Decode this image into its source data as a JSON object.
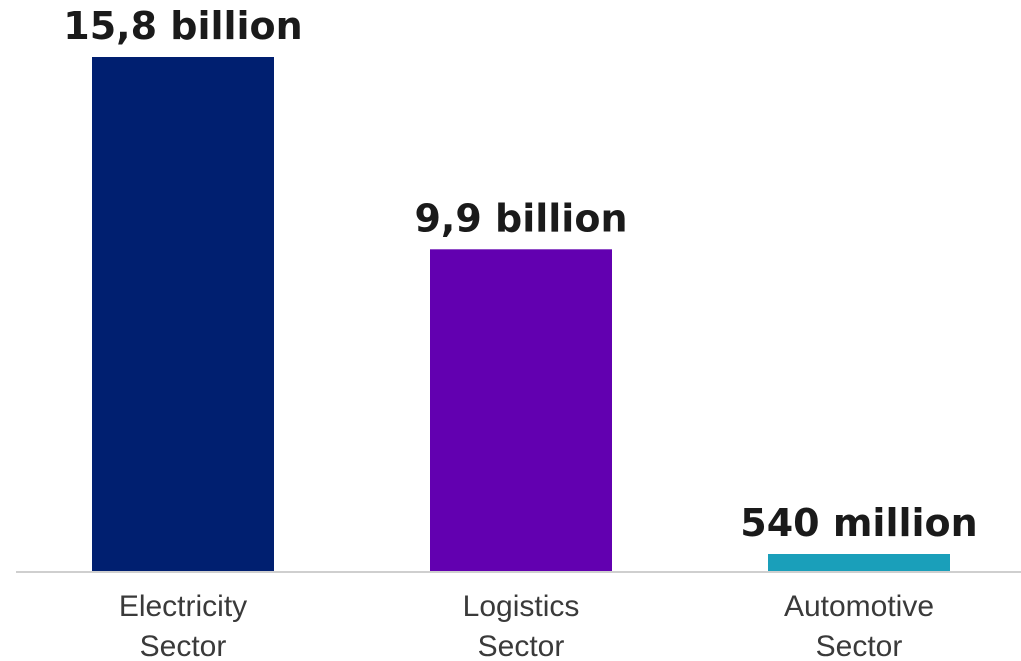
{
  "chart_data": {
    "type": "bar",
    "categories": [
      [
        "Electricity",
        "Sector"
      ],
      [
        "Logistics",
        "Sector"
      ],
      [
        "Automotive",
        "Sector"
      ]
    ],
    "values": [
      15.8,
      9.9,
      0.54
    ],
    "value_labels": [
      "15,8 billion",
      "9,9 billion",
      "540 million"
    ],
    "colors": [
      "#001f70",
      "#6200b0",
      "#1a9fba"
    ],
    "baseline_color": "#cfcfcf",
    "unit": "billion",
    "grid": false,
    "legend": "none",
    "ylim": [
      0,
      15.8
    ]
  }
}
